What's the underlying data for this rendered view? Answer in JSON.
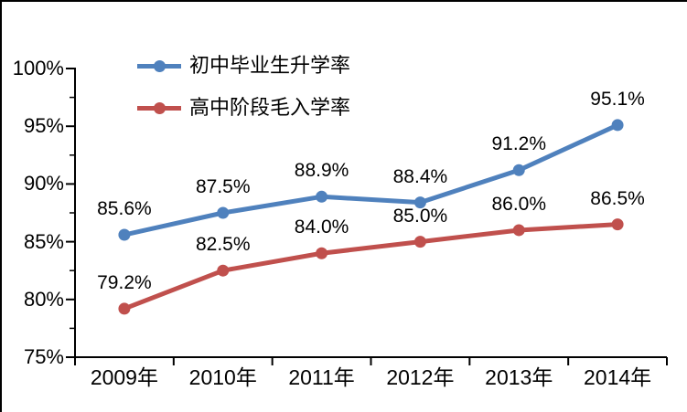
{
  "chart_data": {
    "type": "line",
    "title": "",
    "categories": [
      "2009年",
      "2010年",
      "2011年",
      "2012年",
      "2013年",
      "2014年"
    ],
    "series": [
      {
        "name": "初中毕业生升学率",
        "color": "#4F81BD",
        "values": [
          85.6,
          87.5,
          88.9,
          88.4,
          91.2,
          95.1
        ],
        "point_labels": [
          "85.6%",
          "87.5%",
          "88.9%",
          "88.4%",
          "91.2%",
          "95.1%"
        ]
      },
      {
        "name": "高中阶段毛入学率",
        "color": "#C0504D",
        "values": [
          79.2,
          82.5,
          84.0,
          85.0,
          86.0,
          86.5
        ],
        "point_labels": [
          "79.2%",
          "82.5%",
          "84.0%",
          "85.0%",
          "86.0%",
          "86.5%"
        ]
      }
    ],
    "y_axis": {
      "min": 75,
      "max": 100,
      "major_step": 5,
      "minor_step": 2.5,
      "tick_labels": [
        "100%",
        "95%",
        "90%",
        "85%",
        "80%",
        "75%"
      ]
    },
    "legend_position": "top-left-inside",
    "grid": false,
    "axis_color": "#000000",
    "background_color": "#FFFFFF",
    "marker": "circle"
  }
}
